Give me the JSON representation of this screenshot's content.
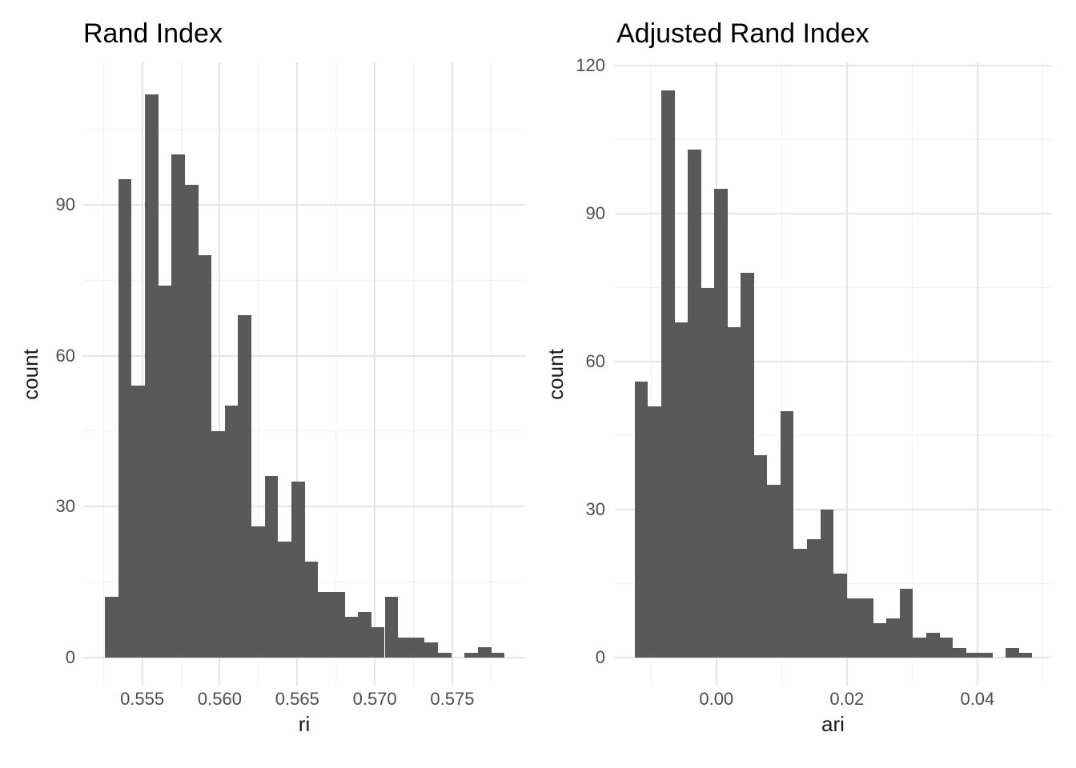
{
  "figure": {
    "background": "#FFFFFF",
    "bar_color": "#595959",
    "grid_major_color": "#E5E5E5",
    "grid_minor_color": "#F1F1F1",
    "tick_label_color": "#4D4D4D",
    "title_color": "#000000"
  },
  "chart_data": [
    {
      "type": "bar",
      "subtype": "histogram",
      "title": "Rand Index",
      "xlabel": "ri",
      "ylabel": "count",
      "legend": "none",
      "grid": true,
      "bin_start": 0.5526,
      "bin_width": 0.000859,
      "counts": [
        12,
        95,
        54,
        112,
        74,
        100,
        94,
        80,
        45,
        50,
        68,
        26,
        36,
        23,
        35,
        19,
        13,
        13,
        8,
        9,
        6,
        12,
        4,
        4,
        3,
        1,
        0,
        1,
        2,
        1
      ],
      "x_tick_values": [
        0.555,
        0.56,
        0.565,
        0.57,
        0.575
      ],
      "x_tick_labels": [
        "0.555",
        "0.560",
        "0.565",
        "0.570",
        "0.575"
      ],
      "x_minor_ticks": [
        0.5525,
        0.5575,
        0.5625,
        0.5675,
        0.5725,
        0.5775
      ],
      "y_tick_values": [
        0,
        30,
        60,
        90
      ],
      "y_tick_labels": [
        "0",
        "30",
        "60",
        "90"
      ],
      "y_minor_ticks": [
        15,
        45,
        75,
        105
      ],
      "xlim": [
        0.5512,
        0.5797
      ],
      "ylim": [
        -5.6,
        118.3
      ]
    },
    {
      "type": "bar",
      "subtype": "histogram",
      "title": "Adjusted Rand Index",
      "xlabel": "ari",
      "ylabel": "count",
      "legend": "none",
      "grid": true,
      "bin_start": -0.0125,
      "bin_width": 0.00203,
      "counts": [
        56,
        51,
        115,
        68,
        103,
        75,
        95,
        67,
        78,
        41,
        35,
        50,
        22,
        24,
        30,
        17,
        12,
        12,
        7,
        8,
        14,
        4,
        5,
        4,
        2,
        1,
        1,
        0,
        2,
        1
      ],
      "x_tick_values": [
        0.0,
        0.02,
        0.04
      ],
      "x_tick_labels": [
        "0.00",
        "0.02",
        "0.04"
      ],
      "x_minor_ticks": [
        -0.01,
        0.01,
        0.03,
        0.05
      ],
      "y_tick_values": [
        0,
        30,
        60,
        90,
        120
      ],
      "y_tick_labels": [
        "0",
        "30",
        "60",
        "90",
        "120"
      ],
      "y_minor_ticks": [
        15,
        45,
        75,
        105
      ],
      "xlim": [
        -0.01555,
        0.0513
      ],
      "ylim": [
        -5.7,
        120.7
      ]
    }
  ]
}
